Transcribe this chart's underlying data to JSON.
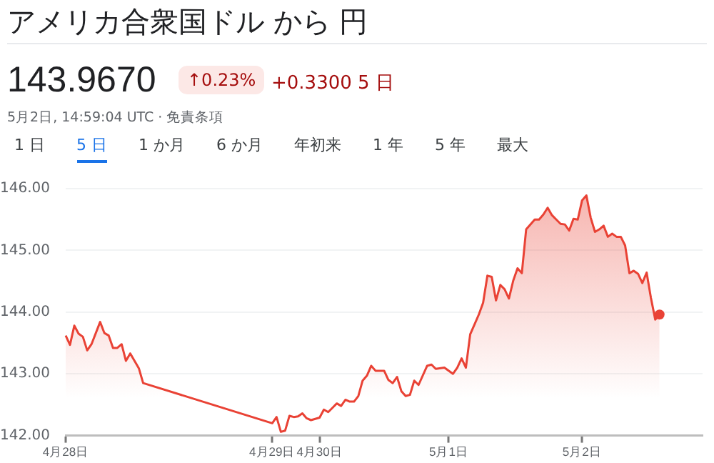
{
  "chart_data": {
    "type": "area",
    "title": "アメリカ合衆国ドル から 円",
    "subtitle": "143.9670",
    "annotations": [
      "↑0.23%",
      "+0.3300 5 日",
      "5月2日, 14:59:04 UTC · 免責条項",
      "1 日",
      "5 日",
      "1 か月",
      "6 か月",
      "年初来",
      "1 年",
      "5 年",
      "最大"
    ],
    "categories": [
      "4月28日",
      null,
      null,
      null,
      null,
      null,
      null,
      null,
      null,
      null,
      null,
      null,
      null,
      null,
      null,
      null,
      null,
      null,
      null,
      null,
      null,
      null,
      null,
      null,
      null,
      null,
      null,
      null,
      null,
      null,
      null,
      null,
      null,
      null,
      null,
      null,
      null,
      null,
      null,
      null,
      null,
      null,
      null,
      null,
      null,
      null,
      null,
      null,
      "4月29日",
      null,
      null,
      null,
      null,
      null,
      null,
      null,
      null,
      null,
      null,
      "4月30日",
      null,
      null,
      null,
      null,
      null,
      null,
      null,
      null,
      null,
      null,
      null,
      null,
      null,
      null,
      null,
      null,
      null,
      null,
      null,
      null,
      null,
      null,
      null,
      null,
      null,
      null,
      null,
      null,
      null,
      "5月1日",
      null,
      null,
      null,
      null,
      null,
      null,
      null,
      null,
      null,
      null,
      null,
      null,
      null,
      null,
      null,
      null,
      null,
      null,
      null,
      null,
      null,
      null,
      null,
      null,
      null,
      null,
      null,
      null,
      null,
      null,
      "5月2日",
      null,
      null,
      null,
      null,
      null,
      null,
      null,
      null,
      null,
      null,
      null,
      null,
      null,
      null,
      null,
      null,
      null,
      null,
      null,
      null,
      null,
      null,
      null,
      null,
      null,
      null,
      null,
      null
    ],
    "series": [
      {
        "color": "#e94235",
        "values": [
          143.62,
          143.47,
          143.78,
          143.65,
          143.6,
          143.38,
          143.48,
          null,
          143.84,
          143.66,
          143.62,
          143.42,
          143.42,
          143.48,
          143.21,
          143.33,
          null,
          143.09,
          142.85,
          null,
          null,
          null,
          null,
          null,
          null,
          null,
          null,
          null,
          null,
          null,
          null,
          null,
          null,
          null,
          null,
          null,
          null,
          null,
          null,
          null,
          null,
          null,
          null,
          null,
          null,
          null,
          null,
          null,
          142.2,
          142.3,
          142.06,
          142.08,
          142.32,
          142.3,
          142.31,
          142.36,
          142.28,
          142.25,
          null,
          142.29,
          142.42,
          142.38,
          142.45,
          142.52,
          142.48,
          142.58,
          142.55,
          142.55,
          142.64,
          142.89,
          142.97,
          143.13,
          143.05,
          null,
          143.05,
          142.9,
          142.85,
          142.95,
          142.72,
          142.64,
          142.66,
          142.89,
          142.82,
          null,
          143.13,
          143.15,
          143.08,
          null,
          143.1,
          null,
          143.0,
          143.1,
          143.25,
          143.1,
          143.64,
          143.8,
          143.96,
          144.15,
          144.59,
          144.57,
          144.19,
          144.44,
          144.37,
          144.22,
          144.51,
          144.71,
          144.63,
          145.34,
          null,
          145.5,
          145.5,
          145.58,
          145.69,
          145.57,
          145.5,
          145.43,
          145.42,
          145.32,
          145.51,
          145.5,
          145.81,
          145.89,
          145.53,
          145.3,
          145.34,
          145.4,
          145.22,
          145.27,
          145.22,
          145.22,
          145.08,
          144.63,
          144.67,
          144.62,
          144.47,
          144.64,
          144.23,
          143.88,
          143.96,
          null,
          null,
          null,
          null,
          null,
          null,
          null,
          null,
          null,
          null
        ]
      }
    ],
    "ylim": [
      142,
      146
    ],
    "yticks": [
      {
        "value": 142,
        "label": "142.00"
      },
      {
        "value": 143,
        "label": "143.00"
      },
      {
        "value": 144,
        "label": "144.00"
      },
      {
        "value": 145,
        "label": "145.00"
      },
      {
        "value": 146,
        "label": "146.00"
      }
    ],
    "grid": "y",
    "legend": false
  }
}
